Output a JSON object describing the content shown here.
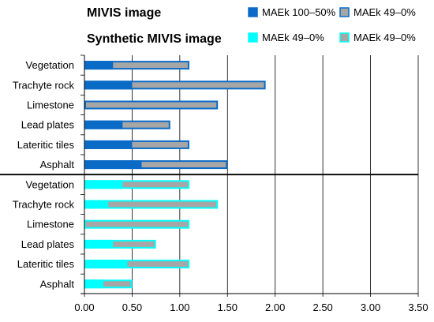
{
  "chart_data": {
    "type": "bar",
    "orientation": "horizontal",
    "stacked": true,
    "legend": {
      "position": "top",
      "groups": [
        {
          "title": "MIVIS image",
          "entries": [
            {
              "label": "MAEk 100–50%",
              "color": "#0a6bc7",
              "border": "#0a6bc7"
            },
            {
              "label": "MAEk 49–0%",
              "color": "#a6a6a6",
              "border": "#0a6bc7"
            }
          ]
        },
        {
          "title": "Synthetic MIVIS image",
          "entries": [
            {
              "label": "MAEk 49–0%",
              "color": "#00ffff",
              "border": "#00ffff"
            },
            {
              "label": "MAEk 49–0%",
              "color": "#a6a6a6",
              "border": "#00ffff"
            }
          ]
        }
      ]
    },
    "groups": [
      {
        "name": "MIVIS image",
        "high_color": "#0a6bc7",
        "low_color": "#a6a6a6",
        "border_color": "#0a6bc7",
        "categories": [
          "Vegetation",
          "Trachyte rock",
          "Limestone",
          "Lead plates",
          "Lateritic tiles",
          "Asphalt"
        ],
        "maek_100_50": [
          0.3,
          0.5,
          0.0,
          0.4,
          0.5,
          0.6
        ],
        "maek_49_0": [
          0.8,
          1.4,
          1.4,
          0.5,
          0.6,
          0.9
        ]
      },
      {
        "name": "Synthetic MIVIS image",
        "high_color": "#00ffff",
        "low_color": "#a6a6a6",
        "border_color": "#00ffff",
        "categories": [
          "Vegetation",
          "Trachyte rock",
          "Limestone",
          "Lead plates",
          "Lateritic tiles",
          "Asphalt"
        ],
        "maek_100_50": [
          0.4,
          0.25,
          0.0,
          0.3,
          0.45,
          0.2
        ],
        "maek_49_0": [
          0.7,
          1.15,
          1.1,
          0.45,
          0.65,
          0.3
        ]
      }
    ],
    "xlim": [
      0,
      3.5
    ],
    "xticks": [
      "0.00",
      "0.50",
      "1.00",
      "1.50",
      "2.00",
      "2.50",
      "3.00",
      "3.50"
    ],
    "xtick_values": [
      0,
      0.5,
      1.0,
      1.5,
      2.0,
      2.5,
      3.0,
      3.5
    ],
    "grid": "vertical",
    "xlabel": "",
    "ylabel": ""
  }
}
